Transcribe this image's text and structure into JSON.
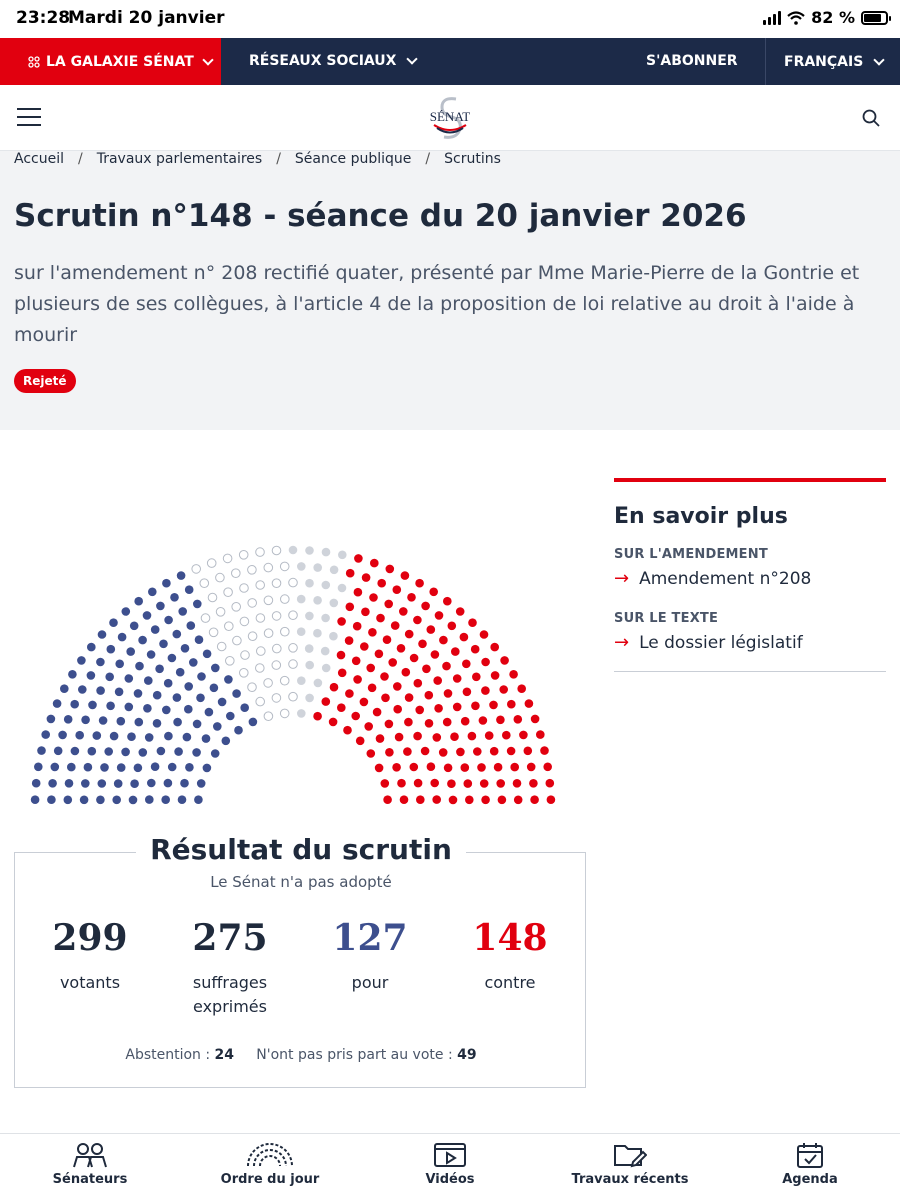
{
  "status_bar": {
    "time": "23:28",
    "date": "Mardi 20 janvier",
    "battery": "82 %",
    "battery_level": 0.82
  },
  "topnav": {
    "galaxie": "LA GALAXIE SÉNAT",
    "reseaux": "RÉSEAUX SOCIAUX",
    "abonner": "S'ABONNER",
    "langue": "FRANÇAIS"
  },
  "header": {
    "logo_text": "SÉNAT"
  },
  "breadcrumb": [
    "Accueil",
    "Travaux parlementaires",
    "Séance publique",
    "Scrutins"
  ],
  "page": {
    "title": "Scrutin n°148 - séance du 20 janvier 2026",
    "subtitle": "sur l'amendement n° 208 rectifié quater, présenté par Mme Marie-Pierre de la Gontrie et plusieurs de ses collègues, à l'article 4 de la proposition de loi relative au droit à l'aide à mourir",
    "status": "Rejeté"
  },
  "result": {
    "title": "Résultat du scrutin",
    "subtitle": "Le Sénat n'a pas adopté",
    "stats": [
      {
        "value": "299",
        "label": "votants",
        "color": "#1f2a3c"
      },
      {
        "value": "275",
        "label": "suffrages exprimés",
        "color": "#1f2a3c"
      },
      {
        "value": "127",
        "label": "pour",
        "color": "#3d4f8e"
      },
      {
        "value": "148",
        "label": "contre",
        "color": "#e1000f"
      }
    ],
    "abstention_label": "Abstention :",
    "abstention": "24",
    "nppv_label": "N'ont pas pris part au vote :",
    "nppv": "49"
  },
  "side": {
    "title": "En savoir plus",
    "cap1": "SUR L'AMENDEMENT",
    "link1": "Amendement n°208",
    "cap2": "SUR LE TEXTE",
    "link2": "Le dossier législatif"
  },
  "tabs": [
    {
      "label": "Sénateurs",
      "icon": "senators-icon"
    },
    {
      "label": "Ordre du jour",
      "icon": "hemicycle-icon"
    },
    {
      "label": "Vidéos",
      "icon": "video-icon"
    },
    {
      "label": "Travaux récents",
      "icon": "folder-edit-icon"
    },
    {
      "label": "Agenda",
      "icon": "calendar-icon"
    }
  ],
  "colors": {
    "pour": "#3d4f8e",
    "contre": "#e1000f",
    "abstention": "#cfd3da",
    "nppv": "#ffffff",
    "navy": "#1c2a48",
    "red": "#e1000f"
  },
  "hemicycle": {
    "pour": 127,
    "contre": 148,
    "abstention": 24,
    "nppv": 49
  }
}
